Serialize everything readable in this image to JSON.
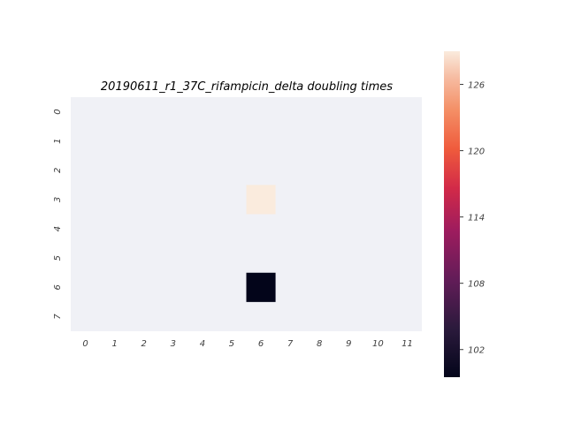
{
  "chart_data": {
    "type": "heatmap",
    "title": "20190611_r1_37C_rifampicin_delta doubling times",
    "xlabel": "",
    "ylabel": "",
    "x_categories": [
      "0",
      "1",
      "2",
      "3",
      "4",
      "5",
      "6",
      "7",
      "8",
      "9",
      "10",
      "11"
    ],
    "y_categories": [
      "0",
      "1",
      "2",
      "3",
      "4",
      "5",
      "6",
      "7"
    ],
    "cells": [
      {
        "row": 3,
        "col": 6,
        "value": 129
      },
      {
        "row": 6,
        "col": 6,
        "value": 99.5
      }
    ],
    "background_color": "#f0f1f6",
    "colorbar": {
      "min": 99.5,
      "max": 129,
      "ticks": [
        102,
        108,
        114,
        120,
        126
      ],
      "tick_labels": [
        "102",
        "108",
        "114",
        "120",
        "126"
      ],
      "colormap": "rocket"
    }
  }
}
